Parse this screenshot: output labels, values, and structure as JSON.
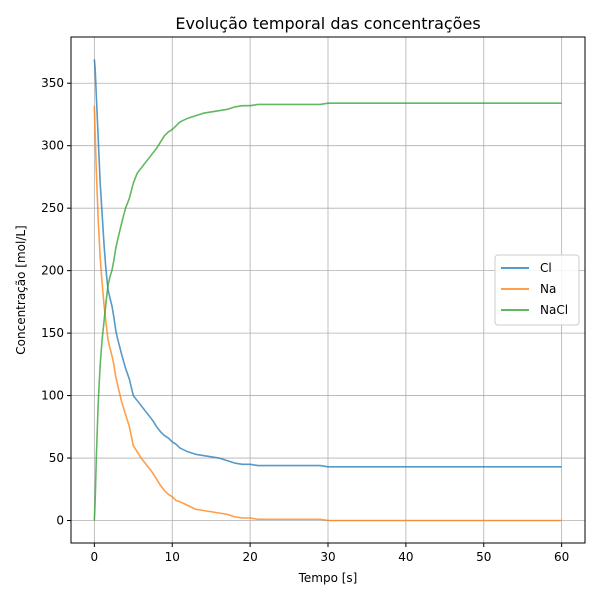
{
  "chart_data": {
    "type": "line",
    "title": "Evolução temporal das concentrações",
    "xlabel": "Tempo [s]",
    "ylabel": "Concentração [mol/L]",
    "xlim": [
      -3,
      63
    ],
    "ylim": [
      -18,
      387
    ],
    "xticks": [
      0,
      10,
      20,
      30,
      40,
      50,
      60
    ],
    "yticks": [
      0,
      50,
      100,
      150,
      200,
      250,
      300,
      350
    ],
    "grid": true,
    "legend_position": "center-right",
    "series": [
      {
        "name": "Cl",
        "color": "#1f77b4",
        "x": [
          0,
          0.1,
          0.25,
          0.5,
          0.75,
          1,
          1.25,
          1.5,
          1.75,
          2,
          2.25,
          2.5,
          2.75,
          3,
          3.5,
          4,
          4.5,
          5,
          5.5,
          6,
          6.5,
          7,
          7.5,
          8,
          8.5,
          9,
          9.5,
          10,
          10.5,
          11,
          12,
          13,
          14,
          15,
          16,
          17,
          18,
          19,
          20,
          21,
          25,
          29,
          30,
          40,
          50,
          60
        ],
        "y": [
          369,
          362,
          340,
          305,
          270,
          245,
          220,
          200,
          185,
          178,
          172,
          163,
          152,
          145,
          133,
          122,
          113,
          100,
          96,
          92,
          88,
          84,
          80,
          75,
          71,
          68,
          66,
          63,
          61,
          58,
          55,
          53,
          52,
          51,
          50,
          48,
          46,
          45,
          45,
          44,
          44,
          44,
          43,
          43,
          43,
          43
        ]
      },
      {
        "name": "Na",
        "color": "#ff7f0e",
        "x": [
          0,
          0.1,
          0.25,
          0.5,
          0.75,
          1,
          1.25,
          1.5,
          1.75,
          2,
          2.25,
          2.5,
          2.75,
          3,
          3.5,
          4,
          4.5,
          5,
          5.5,
          6,
          6.5,
          7,
          7.5,
          8,
          8.5,
          9,
          9.5,
          10,
          10.5,
          11,
          12,
          13,
          14,
          15,
          16,
          17,
          18,
          19,
          20,
          21,
          25,
          29,
          30,
          40,
          50,
          60
        ],
        "y": [
          332,
          310,
          280,
          240,
          210,
          190,
          172,
          158,
          145,
          138,
          132,
          125,
          115,
          108,
          95,
          85,
          75,
          60,
          55,
          50,
          46,
          42,
          38,
          33,
          28,
          24,
          21,
          19,
          16,
          15,
          12,
          9,
          8,
          7,
          6,
          5,
          3,
          2,
          2,
          1,
          1,
          1,
          0,
          0,
          0,
          0
        ]
      },
      {
        "name": "NaCl",
        "color": "#2ca02c",
        "x": [
          0,
          0.1,
          0.25,
          0.5,
          0.75,
          1,
          1.25,
          1.5,
          1.75,
          2,
          2.25,
          2.5,
          2.75,
          3,
          3.5,
          4,
          4.5,
          5,
          5.5,
          6,
          6.5,
          7,
          7.5,
          8,
          8.5,
          9,
          9.5,
          10,
          10.5,
          11,
          12,
          13,
          14,
          15,
          16,
          17,
          18,
          19,
          20,
          21,
          25,
          29,
          30,
          40,
          50,
          60
        ],
        "y": [
          0,
          15,
          50,
          95,
          125,
          145,
          160,
          175,
          188,
          195,
          200,
          208,
          218,
          225,
          238,
          250,
          258,
          270,
          278,
          282,
          286,
          290,
          294,
          298,
          303,
          308,
          311,
          313,
          316,
          319,
          322,
          324,
          326,
          327,
          328,
          329,
          331,
          332,
          332,
          333,
          333,
          333,
          334,
          334,
          334,
          334
        ]
      }
    ]
  }
}
